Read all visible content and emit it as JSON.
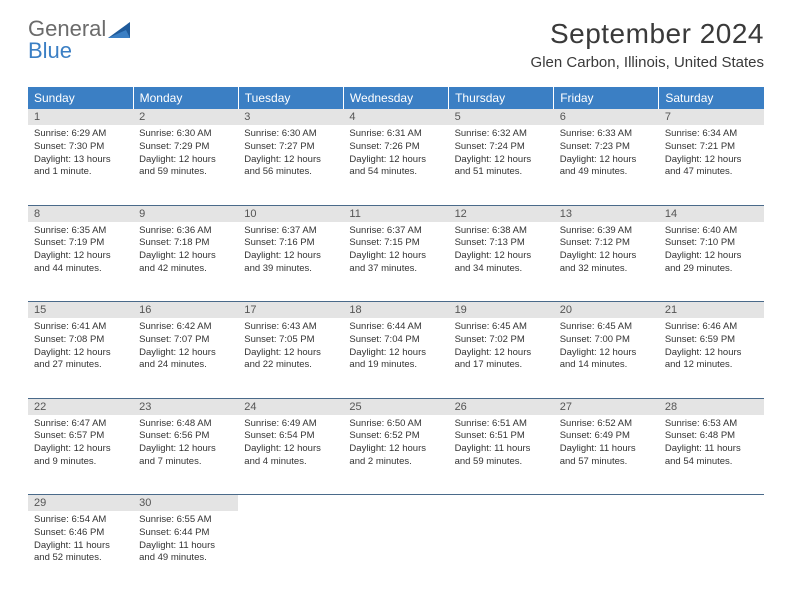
{
  "brand": {
    "name1": "General",
    "name2": "Blue"
  },
  "title": "September 2024",
  "location": "Glen Carbon, Illinois, United States",
  "colors": {
    "header_bg": "#3b7fc4",
    "header_text": "#ffffff",
    "daynum_bg": "#e4e4e4",
    "body_text": "#333333",
    "rule": "#4a6a8a",
    "logo_gray": "#6b6b6b",
    "logo_blue": "#3b7fc4"
  },
  "weekdays": [
    "Sunday",
    "Monday",
    "Tuesday",
    "Wednesday",
    "Thursday",
    "Friday",
    "Saturday"
  ],
  "weeks": [
    [
      {
        "n": "1",
        "sr": "6:29 AM",
        "ss": "7:30 PM",
        "dl": "13 hours and 1 minute."
      },
      {
        "n": "2",
        "sr": "6:30 AM",
        "ss": "7:29 PM",
        "dl": "12 hours and 59 minutes."
      },
      {
        "n": "3",
        "sr": "6:30 AM",
        "ss": "7:27 PM",
        "dl": "12 hours and 56 minutes."
      },
      {
        "n": "4",
        "sr": "6:31 AM",
        "ss": "7:26 PM",
        "dl": "12 hours and 54 minutes."
      },
      {
        "n": "5",
        "sr": "6:32 AM",
        "ss": "7:24 PM",
        "dl": "12 hours and 51 minutes."
      },
      {
        "n": "6",
        "sr": "6:33 AM",
        "ss": "7:23 PM",
        "dl": "12 hours and 49 minutes."
      },
      {
        "n": "7",
        "sr": "6:34 AM",
        "ss": "7:21 PM",
        "dl": "12 hours and 47 minutes."
      }
    ],
    [
      {
        "n": "8",
        "sr": "6:35 AM",
        "ss": "7:19 PM",
        "dl": "12 hours and 44 minutes."
      },
      {
        "n": "9",
        "sr": "6:36 AM",
        "ss": "7:18 PM",
        "dl": "12 hours and 42 minutes."
      },
      {
        "n": "10",
        "sr": "6:37 AM",
        "ss": "7:16 PM",
        "dl": "12 hours and 39 minutes."
      },
      {
        "n": "11",
        "sr": "6:37 AM",
        "ss": "7:15 PM",
        "dl": "12 hours and 37 minutes."
      },
      {
        "n": "12",
        "sr": "6:38 AM",
        "ss": "7:13 PM",
        "dl": "12 hours and 34 minutes."
      },
      {
        "n": "13",
        "sr": "6:39 AM",
        "ss": "7:12 PM",
        "dl": "12 hours and 32 minutes."
      },
      {
        "n": "14",
        "sr": "6:40 AM",
        "ss": "7:10 PM",
        "dl": "12 hours and 29 minutes."
      }
    ],
    [
      {
        "n": "15",
        "sr": "6:41 AM",
        "ss": "7:08 PM",
        "dl": "12 hours and 27 minutes."
      },
      {
        "n": "16",
        "sr": "6:42 AM",
        "ss": "7:07 PM",
        "dl": "12 hours and 24 minutes."
      },
      {
        "n": "17",
        "sr": "6:43 AM",
        "ss": "7:05 PM",
        "dl": "12 hours and 22 minutes."
      },
      {
        "n": "18",
        "sr": "6:44 AM",
        "ss": "7:04 PM",
        "dl": "12 hours and 19 minutes."
      },
      {
        "n": "19",
        "sr": "6:45 AM",
        "ss": "7:02 PM",
        "dl": "12 hours and 17 minutes."
      },
      {
        "n": "20",
        "sr": "6:45 AM",
        "ss": "7:00 PM",
        "dl": "12 hours and 14 minutes."
      },
      {
        "n": "21",
        "sr": "6:46 AM",
        "ss": "6:59 PM",
        "dl": "12 hours and 12 minutes."
      }
    ],
    [
      {
        "n": "22",
        "sr": "6:47 AM",
        "ss": "6:57 PM",
        "dl": "12 hours and 9 minutes."
      },
      {
        "n": "23",
        "sr": "6:48 AM",
        "ss": "6:56 PM",
        "dl": "12 hours and 7 minutes."
      },
      {
        "n": "24",
        "sr": "6:49 AM",
        "ss": "6:54 PM",
        "dl": "12 hours and 4 minutes."
      },
      {
        "n": "25",
        "sr": "6:50 AM",
        "ss": "6:52 PM",
        "dl": "12 hours and 2 minutes."
      },
      {
        "n": "26",
        "sr": "6:51 AM",
        "ss": "6:51 PM",
        "dl": "11 hours and 59 minutes."
      },
      {
        "n": "27",
        "sr": "6:52 AM",
        "ss": "6:49 PM",
        "dl": "11 hours and 57 minutes."
      },
      {
        "n": "28",
        "sr": "6:53 AM",
        "ss": "6:48 PM",
        "dl": "11 hours and 54 minutes."
      }
    ],
    [
      {
        "n": "29",
        "sr": "6:54 AM",
        "ss": "6:46 PM",
        "dl": "11 hours and 52 minutes."
      },
      {
        "n": "30",
        "sr": "6:55 AM",
        "ss": "6:44 PM",
        "dl": "11 hours and 49 minutes."
      },
      null,
      null,
      null,
      null,
      null
    ]
  ],
  "labels": {
    "sunrise": "Sunrise:",
    "sunset": "Sunset:",
    "daylight": "Daylight:"
  }
}
